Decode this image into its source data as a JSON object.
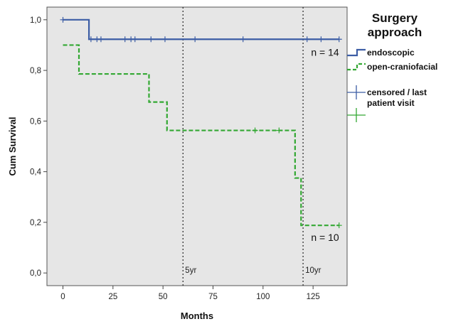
{
  "chart_data": {
    "type": "line",
    "subtype": "kaplan-meier step survival curve",
    "xlabel": "Months",
    "ylabel": "Cum Survival",
    "xlim": [
      -8,
      142
    ],
    "ylim": [
      -0.05,
      1.05
    ],
    "x_ticks": [
      0,
      25,
      50,
      75,
      100,
      125
    ],
    "x_tick_labels": [
      "0",
      "25",
      "50",
      "75",
      "100",
      "125"
    ],
    "y_ticks": [
      0.0,
      0.2,
      0.4,
      0.6,
      0.8,
      1.0
    ],
    "y_tick_labels": [
      "0,0",
      "0,2",
      "0,4",
      "0,6",
      "0,8",
      "1,0"
    ],
    "grid": false,
    "plot_background": "#e6e6e6",
    "legend": {
      "title": [
        "Surgery",
        "approach"
      ],
      "placement": "right",
      "entries": [
        {
          "label": "endoscopic",
          "series": 0,
          "kind": "line"
        },
        {
          "label": "open-craniofacial",
          "series": 1,
          "kind": "line"
        },
        {
          "label": "censored / last patient visit",
          "label_lines": [
            "censored / last",
            "patient visit"
          ],
          "series": 0,
          "kind": "censor"
        },
        {
          "label": "",
          "series": 1,
          "kind": "censor"
        }
      ]
    },
    "reference_lines": [
      {
        "x": 60,
        "label": "5yr"
      },
      {
        "x": 120,
        "label": "10yr"
      }
    ],
    "series": [
      {
        "name": "endoscopic",
        "color": "#3c5da5",
        "dash": "solid",
        "steps": [
          [
            0,
            1.0
          ],
          [
            13,
            0.923
          ],
          [
            138,
            0.923
          ]
        ],
        "censored": [
          [
            0,
            1.0
          ],
          [
            14,
            0.923
          ],
          [
            17,
            0.923
          ],
          [
            19,
            0.923
          ],
          [
            31,
            0.923
          ],
          [
            34,
            0.923
          ],
          [
            36,
            0.923
          ],
          [
            44,
            0.923
          ],
          [
            51,
            0.923
          ],
          [
            66,
            0.923
          ],
          [
            90,
            0.923
          ],
          [
            122,
            0.923
          ],
          [
            129,
            0.923
          ],
          [
            138,
            0.923
          ]
        ],
        "annotation": "n = 14"
      },
      {
        "name": "open-craniofacial",
        "color": "#33a833",
        "dash": "dashed",
        "steps": [
          [
            0,
            0.9
          ],
          [
            8,
            0.786
          ],
          [
            43,
            0.675
          ],
          [
            52,
            0.563
          ],
          [
            116,
            0.375
          ],
          [
            119,
            0.188
          ],
          [
            138,
            0.188
          ]
        ],
        "censored": [
          [
            96,
            0.563
          ],
          [
            108,
            0.563
          ],
          [
            138,
            0.188
          ]
        ],
        "annotation": "n = 10"
      }
    ]
  }
}
